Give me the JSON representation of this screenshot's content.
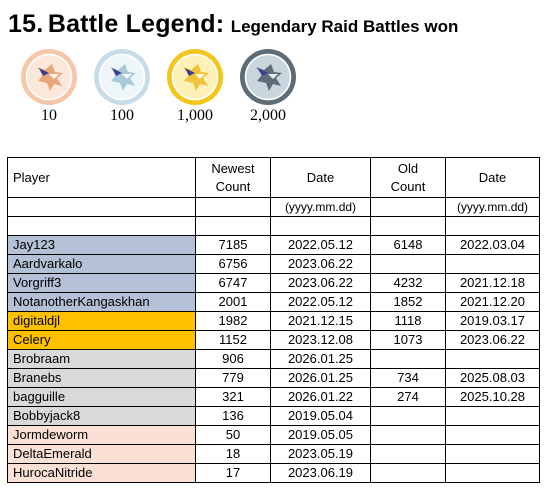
{
  "title": {
    "number": "15.",
    "main": "Battle Legend:",
    "sub": "Legendary Raid Battles won"
  },
  "medals": [
    {
      "label": "10",
      "tier": "bronze",
      "ring": "#f5c7a8",
      "fill": "#fbe8da",
      "icon": "#e9a67c"
    },
    {
      "label": "100",
      "tier": "silver",
      "ring": "#c6dde9",
      "fill": "#eef6fa",
      "icon": "#a9cbd9"
    },
    {
      "label": "1,000",
      "tier": "gold",
      "ring": "#f2c61c",
      "fill": "#fdf1b8",
      "icon": "#f0c33a"
    },
    {
      "label": "2,000",
      "tier": "platinum",
      "ring": "#5d6c76",
      "fill": "#c9d6dd",
      "icon": "#5b6e79"
    }
  ],
  "table": {
    "headers": {
      "player": "Player",
      "newest_count": [
        "Newest",
        "Count"
      ],
      "date1": "Date",
      "old_count": [
        "Old",
        "Count"
      ],
      "date2": "Date"
    },
    "subheaders": {
      "date1": "(yyyy.mm.dd)",
      "date2": "(yyyy.mm.dd)"
    },
    "tier_colors": {
      "platinum": "#b4c0d6",
      "gold": "#ffc000",
      "silver": "#d9d9d9",
      "bronze": "#fbe1d5"
    },
    "rows": [
      {
        "player": "Jay123",
        "newest": "7185",
        "date": "2022.05.12",
        "old": "6148",
        "old_date": "2022.03.04",
        "tier": "platinum"
      },
      {
        "player": "Aardvarkalo",
        "newest": "6756",
        "date": "2023.06.22",
        "old": "",
        "old_date": "",
        "tier": "platinum"
      },
      {
        "player": "Vorgriff3",
        "newest": "6747",
        "date": "2023.06.22",
        "old": "4232",
        "old_date": "2021.12.18",
        "tier": "platinum"
      },
      {
        "player": "NotanotherKangaskhan",
        "newest": "2001",
        "date": "2022.05.12",
        "old": "1852",
        "old_date": "2021.12.20",
        "tier": "platinum"
      },
      {
        "player": "digitaldjl",
        "newest": "1982",
        "date": "2021.12.15",
        "old": "1118",
        "old_date": "2019.03.17",
        "tier": "gold"
      },
      {
        "player": "Celery",
        "newest": "1152",
        "date": "2023.12.08",
        "old": "1073",
        "old_date": "2023.06.22",
        "tier": "gold"
      },
      {
        "player": "Brobraam",
        "newest": "906",
        "date": "2026.01.25",
        "old": "",
        "old_date": "",
        "tier": "silver"
      },
      {
        "player": "Branebs",
        "newest": "779",
        "date": "2026.01.25",
        "old": "734",
        "old_date": "2025.08.03",
        "tier": "silver"
      },
      {
        "player": "bagguille",
        "newest": "321",
        "date": "2026.01.22",
        "old": "274",
        "old_date": "2025.10.28",
        "tier": "silver"
      },
      {
        "player": "Bobbyjack8",
        "newest": "136",
        "date": "2019.05.04",
        "old": "",
        "old_date": "",
        "tier": "silver"
      },
      {
        "player": "Jormdeworm",
        "newest": "50",
        "date": "2019.05.05",
        "old": "",
        "old_date": "",
        "tier": "bronze"
      },
      {
        "player": "DeltaEmerald",
        "newest": "18",
        "date": "2023.05.19",
        "old": "",
        "old_date": "",
        "tier": "bronze"
      },
      {
        "player": "HurocaNitride",
        "newest": "17",
        "date": "2023.06.19",
        "old": "",
        "old_date": "",
        "tier": "bronze"
      }
    ]
  }
}
